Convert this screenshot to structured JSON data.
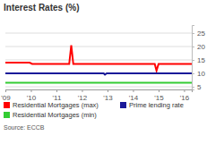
{
  "chart_data": {
    "type": "line",
    "title": "Interest Rates (%)",
    "source": "Source: ECCB",
    "xlim": [
      2009,
      2016.3
    ],
    "xticks": [
      {
        "value": 2009,
        "label": "'09"
      },
      {
        "value": 2010,
        "label": "'10"
      },
      {
        "value": 2011,
        "label": "'11"
      },
      {
        "value": 2012,
        "label": "'12"
      },
      {
        "value": 2013,
        "label": "'13"
      },
      {
        "value": 2014,
        "label": "'14"
      },
      {
        "value": 2015,
        "label": "'15"
      },
      {
        "value": 2016,
        "label": "'16"
      }
    ],
    "ylim": [
      4,
      28
    ],
    "yticks": [
      5,
      10,
      15,
      20,
      25
    ],
    "grid": true,
    "legend": "bottom",
    "series": [
      {
        "name": "Residential Mortgages (max)",
        "color": "#ff0000",
        "x": [
          2009,
          2009.95,
          2010.05,
          2011.5,
          2011.58,
          2011.66,
          2011.75,
          2014.85,
          2014.92,
          2015.0,
          2016.3
        ],
        "values": [
          14,
          14,
          13.5,
          13.5,
          20.5,
          13.5,
          13.5,
          13.5,
          11,
          13.5,
          13.5
        ]
      },
      {
        "name": "Prime lending rate",
        "color": "#1a1a99",
        "x": [
          2009,
          2012.85,
          2012.9,
          2012.97,
          2016.3
        ],
        "values": [
          10,
          10,
          9.5,
          10,
          10
        ]
      },
      {
        "name": "Residential Mortgages (min)",
        "color": "#33cc33",
        "x": [
          2009,
          2016.3
        ],
        "values": [
          6.5,
          6.5
        ]
      }
    ]
  }
}
